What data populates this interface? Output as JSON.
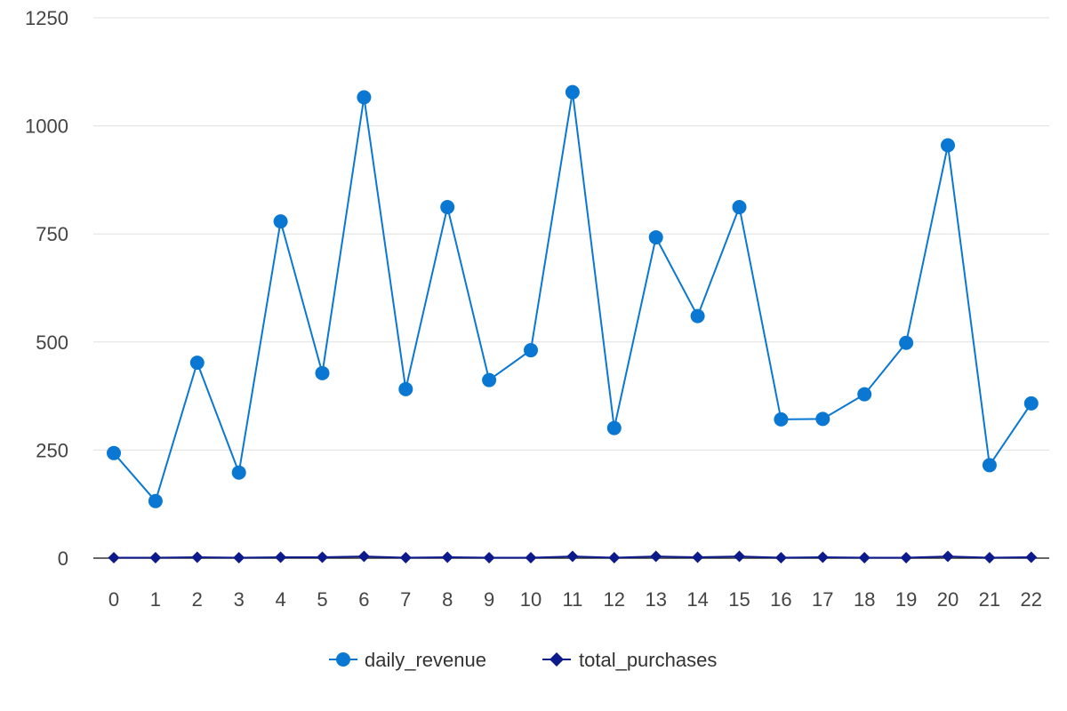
{
  "chart_data": {
    "type": "line",
    "title": "",
    "xlabel": "",
    "ylabel": "",
    "categories": [
      "0",
      "1",
      "2",
      "3",
      "4",
      "5",
      "6",
      "7",
      "8",
      "9",
      "10",
      "11",
      "12",
      "13",
      "14",
      "15",
      "16",
      "17",
      "18",
      "19",
      "20",
      "21",
      "22"
    ],
    "ylim": [
      0,
      1250
    ],
    "yticks": [
      "0",
      "250",
      "500",
      "750",
      "1000",
      "1250"
    ],
    "grid": true,
    "legend_position": "bottom",
    "series": [
      {
        "name": "daily_revenue",
        "color": "#0a78d2",
        "marker": "circle",
        "values": [
          243,
          132,
          452,
          198,
          779,
          428,
          1066,
          391,
          812,
          412,
          481,
          1078,
          301,
          742,
          560,
          812,
          321,
          322,
          379,
          498,
          955,
          215,
          358
        ]
      },
      {
        "name": "total_purchases",
        "color": "#0d1a8c",
        "marker": "diamond",
        "values": [
          1,
          1,
          2,
          1,
          2,
          2,
          4,
          1,
          2,
          1,
          1,
          4,
          1,
          4,
          2,
          4,
          1,
          2,
          1,
          1,
          4,
          1,
          2
        ]
      }
    ]
  }
}
